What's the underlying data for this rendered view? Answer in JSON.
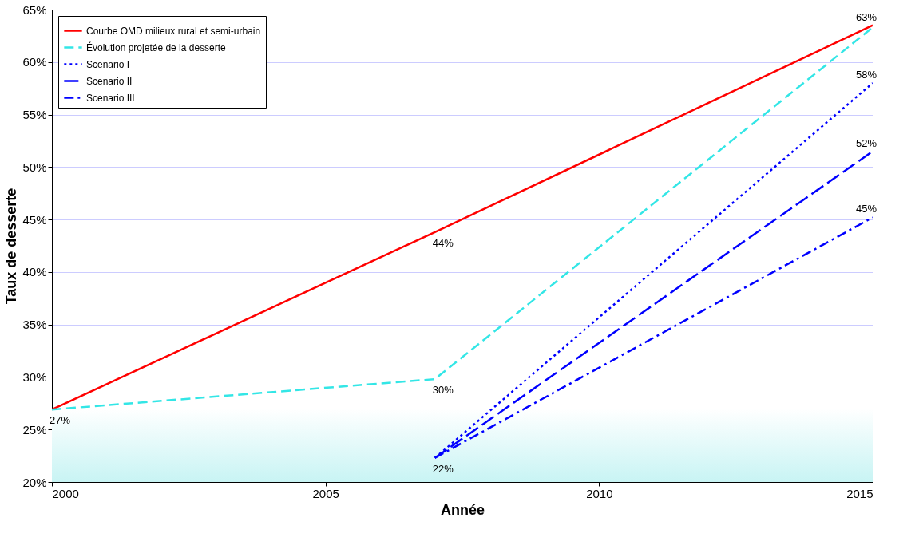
{
  "chart_data": {
    "type": "line",
    "xlabel": "Année",
    "ylabel": "Taux de desserte",
    "xlim": [
      2000,
      2015
    ],
    "xticks": [
      2000,
      2005,
      2010,
      2015
    ],
    "ylim": [
      20,
      65
    ],
    "yticks": [
      {
        "value": 20,
        "label": "20%"
      },
      {
        "value": 25,
        "label": "25%"
      },
      {
        "value": 30,
        "label": "30%"
      },
      {
        "value": 35,
        "label": "35%"
      },
      {
        "value": 40,
        "label": "40%"
      },
      {
        "value": 45,
        "label": "45%"
      },
      {
        "value": 50,
        "label": "50%"
      },
      {
        "value": 55,
        "label": "55%"
      },
      {
        "value": 60,
        "label": "60%"
      },
      {
        "value": 65,
        "label": "65%"
      }
    ],
    "grid": "y",
    "legend": "top left",
    "marker": "none",
    "bands": [
      {
        "axis": "y",
        "from": 20,
        "to": 27,
        "color": "#c8f4f4"
      }
    ],
    "series": [
      {
        "name": "Courbe OMD milieux rural et semi-urbain",
        "color": "#ff0000",
        "line_style": "solid",
        "x": [
          2000,
          2007,
          2015
        ],
        "values": [
          26.9,
          43.8,
          63.5
        ],
        "value_labels": [
          "27%",
          "44%",
          "63%"
        ]
      },
      {
        "name": "Évolution projetée de la desserte",
        "color": "#33e6e6",
        "line_style": "dashed",
        "x": [
          2000,
          2007,
          2015
        ],
        "values": [
          26.9,
          29.8,
          63.3
        ],
        "value_labels": [
          null,
          "30%",
          null
        ]
      },
      {
        "name": "Scenario I",
        "color": "#0000ff",
        "line_style": "dotted",
        "x": [
          2007,
          2015
        ],
        "values": [
          22.3,
          58.0
        ],
        "value_labels": [
          "22%",
          "58%"
        ]
      },
      {
        "name": "Scenario II",
        "color": "#0000ff",
        "line_style": "longdash",
        "x": [
          2007,
          2015
        ],
        "values": [
          22.3,
          51.5
        ],
        "value_labels": [
          null,
          "52%"
        ]
      },
      {
        "name": "Scenario III",
        "color": "#0000ff",
        "line_style": "dashdot",
        "x": [
          2007,
          2015
        ],
        "values": [
          22.3,
          45.2
        ],
        "value_labels": [
          null,
          "45%"
        ]
      }
    ]
  }
}
